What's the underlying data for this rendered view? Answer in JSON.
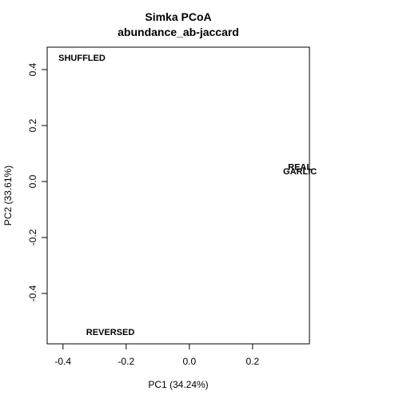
{
  "chart_data": {
    "type": "scatter",
    "title": "Simka PCoA",
    "subtitle": "abundance_ab-jaccard",
    "xlabel": "PC1 (34.24%)",
    "ylabel": "PC2 (33.61%)",
    "xlim": [
      -0.45,
      0.38
    ],
    "ylim": [
      -0.58,
      0.48
    ],
    "xticks": [
      -0.4,
      -0.2,
      0.0,
      0.2
    ],
    "xtick_labels": [
      "-0.4",
      "-0.2",
      "0.0",
      "0.2"
    ],
    "yticks": [
      -0.4,
      -0.2,
      0.0,
      0.2,
      0.4
    ],
    "ytick_labels": [
      "-0.4",
      "-0.2",
      "0.0",
      "0.2",
      "0.4"
    ],
    "grid": false,
    "points": [
      {
        "label": "SHUFFLED",
        "x": -0.34,
        "y": 0.44
      },
      {
        "label": "REAL",
        "x": 0.35,
        "y": 0.05
      },
      {
        "label": "GARLIC",
        "x": 0.35,
        "y": 0.035
      },
      {
        "label": "REVERSED",
        "x": -0.25,
        "y": -0.54
      }
    ]
  }
}
